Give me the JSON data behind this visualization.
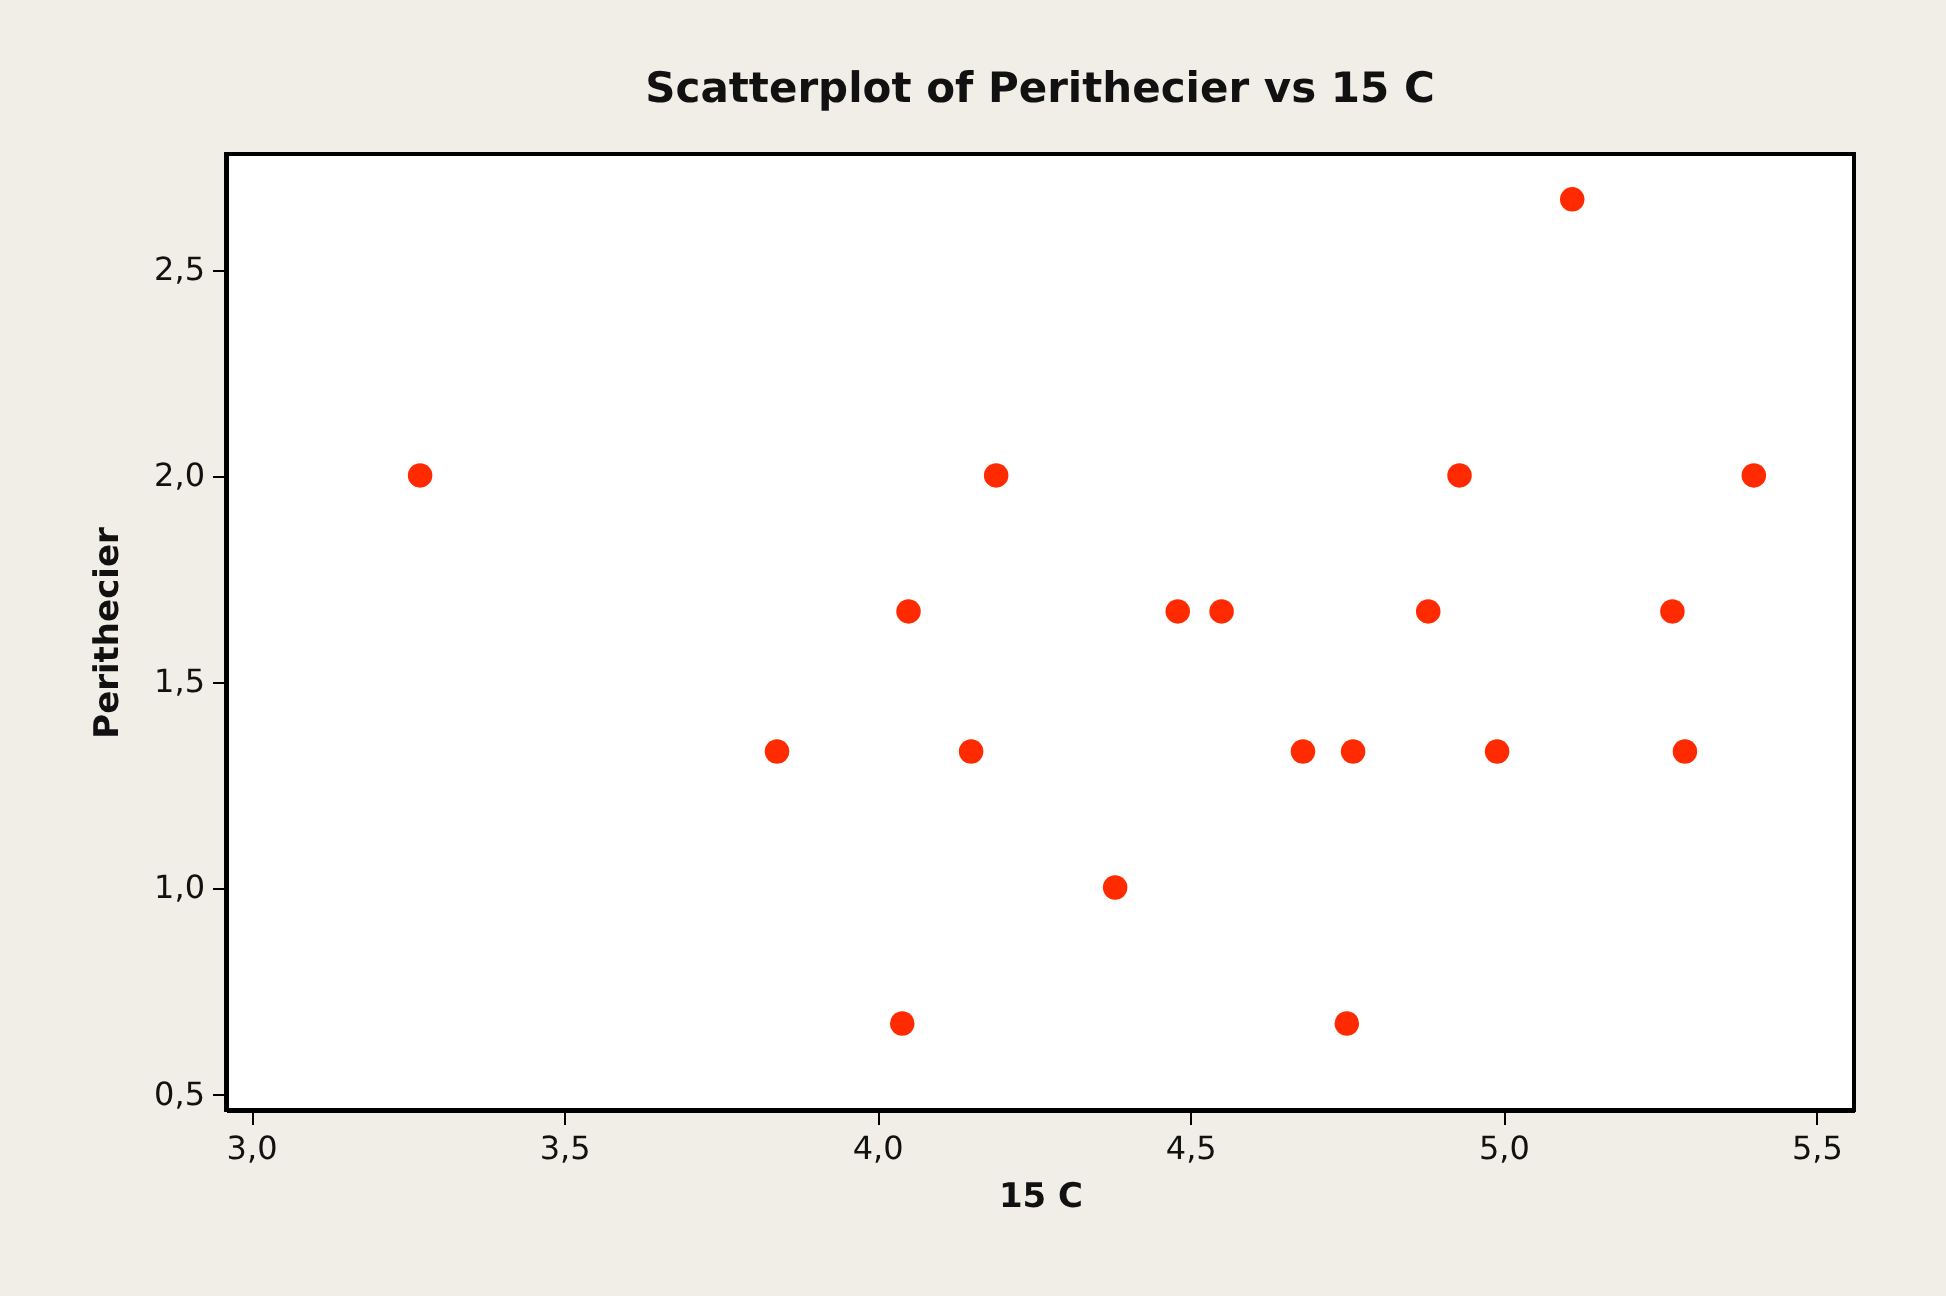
{
  "chart_data": {
    "type": "scatter",
    "title": "Scatterplot of Perithecier vs 15 C",
    "xlabel": "15 C",
    "ylabel": "Perithecier",
    "x": [
      3.27,
      3.84,
      4.05,
      4.04,
      4.15,
      4.19,
      4.38,
      4.48,
      4.55,
      4.68,
      4.75,
      4.76,
      4.88,
      4.93,
      4.99,
      5.11,
      5.27,
      5.29,
      5.4
    ],
    "series": [
      {
        "color": "#ff2a00",
        "values": [
          2.0,
          1.33,
          1.67,
          0.67,
          1.33,
          2.0,
          1.0,
          1.67,
          1.67,
          1.33,
          0.67,
          1.33,
          1.67,
          2.0,
          1.33,
          2.67,
          1.67,
          1.33,
          2.0
        ]
      }
    ],
    "xlim": [
      2.96,
      5.56
    ],
    "ylim": [
      0.46,
      2.78
    ],
    "xticks": [
      {
        "value": 3.0,
        "label": "3,0"
      },
      {
        "value": 3.5,
        "label": "3,5"
      },
      {
        "value": 4.0,
        "label": "4,0"
      },
      {
        "value": 4.5,
        "label": "4,5"
      },
      {
        "value": 5.0,
        "label": "5,0"
      },
      {
        "value": 5.5,
        "label": "5,5"
      }
    ],
    "yticks": [
      {
        "value": 0.5,
        "label": "0,5"
      },
      {
        "value": 1.0,
        "label": "1,0"
      },
      {
        "value": 1.5,
        "label": "1,5"
      },
      {
        "value": 2.0,
        "label": "2,0"
      },
      {
        "value": 2.5,
        "label": "2,5"
      }
    ],
    "marker": "circle",
    "grid": false
  }
}
